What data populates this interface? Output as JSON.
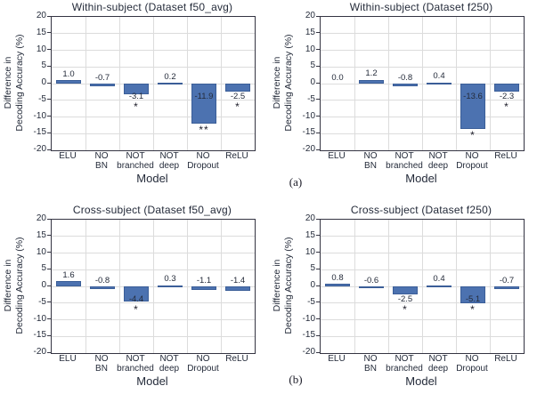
{
  "figure": {
    "label_a": "(a)",
    "label_b": "(b)"
  },
  "style": {
    "bar_fill": "#4c72b0",
    "bar_edge": "#3b5e98",
    "grid_color": "#dcdcdc",
    "frame_color": "#343442",
    "text_color": "#242b3a"
  },
  "chart_data": [
    {
      "type": "bar",
      "title": "Within-subject (Dataset f50_avg)",
      "ylabel": [
        "Difference in",
        "Decoding Accuracy (%)"
      ],
      "xlabel": "Model",
      "ylim": [
        -20,
        20
      ],
      "ytick_step": 5,
      "grid": true,
      "categories": [
        [
          "ELU",
          ""
        ],
        [
          "NO",
          "BN"
        ],
        [
          "NOT",
          "branched"
        ],
        [
          "NOT",
          "deep"
        ],
        [
          "NO",
          "Dropout"
        ],
        [
          "ReLU",
          ""
        ]
      ],
      "values": [
        1.0,
        -0.7,
        -3.1,
        0.2,
        -11.9,
        -2.5
      ],
      "value_labels": [
        "1.0",
        "-0.7",
        "-3.1",
        "0.2",
        "-11.9",
        "-2.5"
      ],
      "significance": [
        "",
        "",
        "*",
        "",
        "**",
        "*"
      ]
    },
    {
      "type": "bar",
      "title": "Within-subject (Dataset f250)",
      "ylabel": [
        "Difference in",
        "Decoding Accuracy (%)"
      ],
      "xlabel": "Model",
      "ylim": [
        -20,
        20
      ],
      "ytick_step": 5,
      "grid": true,
      "categories": [
        [
          "ELU",
          ""
        ],
        [
          "NO",
          "BN"
        ],
        [
          "NOT",
          "branched"
        ],
        [
          "NOT",
          "deep"
        ],
        [
          "NO",
          "Dropout"
        ],
        [
          "ReLU",
          ""
        ]
      ],
      "values": [
        0.0,
        1.2,
        -0.8,
        0.4,
        -13.6,
        -2.3
      ],
      "value_labels": [
        "0.0",
        "1.2",
        "-0.8",
        "0.4",
        "-13.6",
        "-2.3"
      ],
      "significance": [
        "",
        "",
        "",
        "",
        "*",
        "*"
      ]
    },
    {
      "type": "bar",
      "title": "Cross-subject (Dataset f50_avg)",
      "ylabel": [
        "Difference in",
        "Decoding Accuracy (%)"
      ],
      "xlabel": "Model",
      "ylim": [
        -20,
        20
      ],
      "ytick_step": 5,
      "grid": true,
      "categories": [
        [
          "ELU",
          ""
        ],
        [
          "NO",
          "BN"
        ],
        [
          "NOT",
          "branched"
        ],
        [
          "NOT",
          "deep"
        ],
        [
          "NO",
          "Dropout"
        ],
        [
          "ReLU",
          ""
        ]
      ],
      "values": [
        1.6,
        -0.8,
        -4.4,
        0.3,
        -1.1,
        -1.4
      ],
      "value_labels": [
        "1.6",
        "-0.8",
        "-4.4",
        "0.3",
        "-1.1",
        "-1.4"
      ],
      "significance": [
        "",
        "",
        "*",
        "",
        "",
        ""
      ]
    },
    {
      "type": "bar",
      "title": "Cross-subject (Dataset f250)",
      "ylabel": [
        "Difference in",
        "Decoding Accuracy (%)"
      ],
      "xlabel": "Model",
      "ylim": [
        -20,
        20
      ],
      "ytick_step": 5,
      "grid": true,
      "categories": [
        [
          "ELU",
          ""
        ],
        [
          "NO",
          "BN"
        ],
        [
          "NOT",
          "branched"
        ],
        [
          "NOT",
          "deep"
        ],
        [
          "NO",
          "Dropout"
        ],
        [
          "ReLU",
          ""
        ]
      ],
      "values": [
        0.8,
        -0.6,
        -2.5,
        0.4,
        -5.1,
        -0.7
      ],
      "value_labels": [
        "0.8",
        "-0.6",
        "-2.5",
        "0.4",
        "-5.1",
        "-0.7"
      ],
      "significance": [
        "",
        "",
        "*",
        "",
        "*",
        ""
      ]
    }
  ]
}
